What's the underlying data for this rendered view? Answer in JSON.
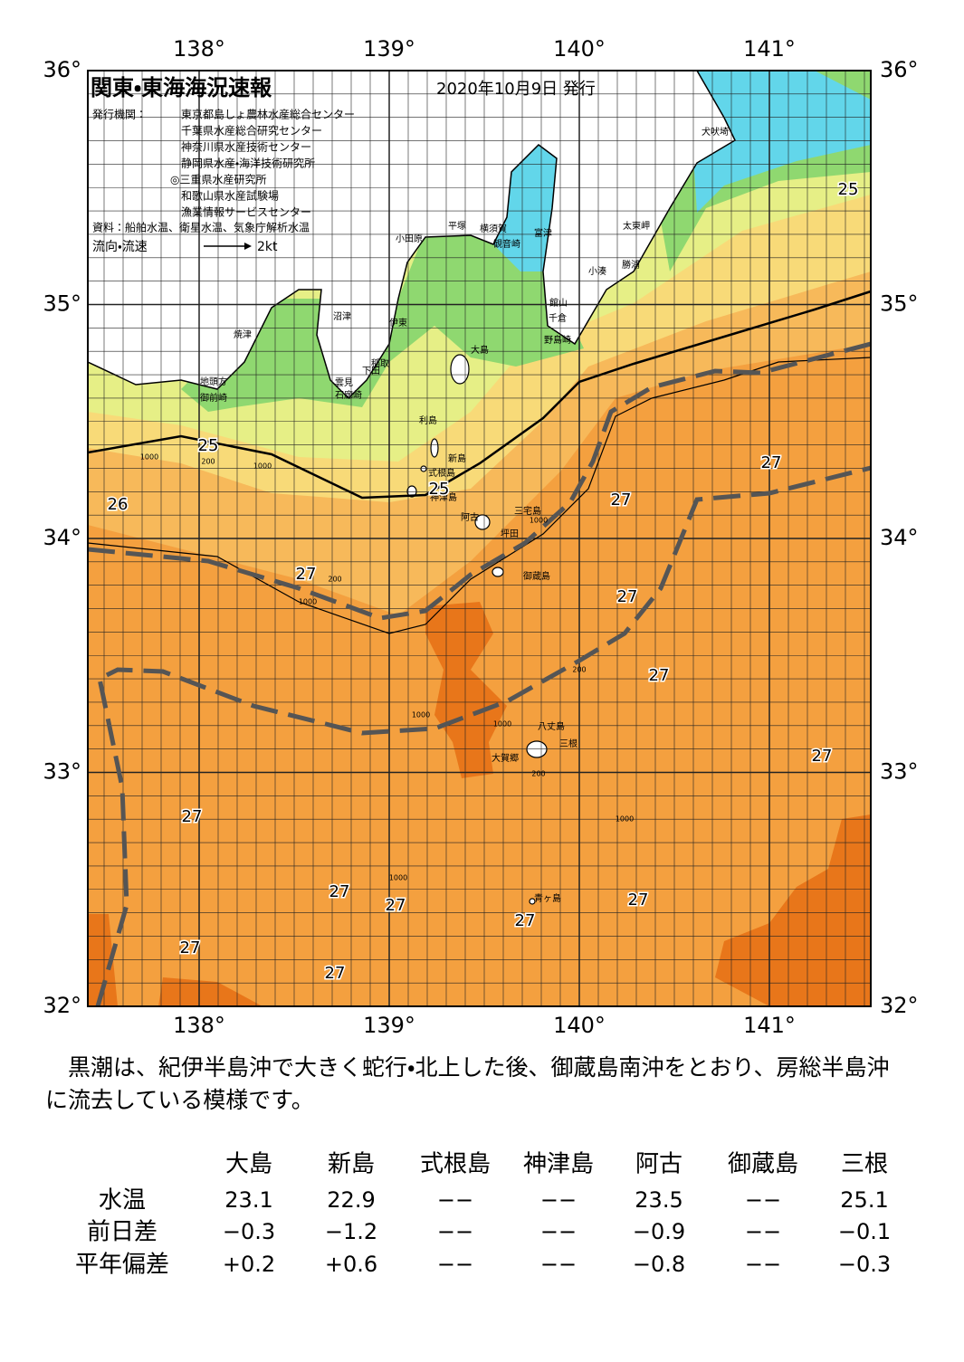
{
  "map": {
    "title": "関東・東海海況速報",
    "date": "2020年10月9日 発行",
    "publishers_label": "発行機関：",
    "publishers": [
      "東京都島しょ農林水産総合センター",
      "千葉県水産総合研究センター",
      "神奈川県水産技術センター",
      "静岡県水産・海洋技術研究所",
      "◎三重県水産研究所",
      "和歌山県水産試験場",
      "漁業情報サービスセンター"
    ],
    "source": "資料：船舶水温、衛星水温、気象庁解析水温",
    "current_label": "流向・流速",
    "current_scale": "2kt",
    "lon_labels": [
      "138°",
      "139°",
      "140°",
      "141°"
    ],
    "lat_labels": [
      "36°",
      "35°",
      "34°",
      "33°",
      "32°"
    ],
    "place_names": [
      "犬吠埼",
      "太東岬",
      "小湊",
      "勝浦",
      "富津",
      "観音崎",
      "横須賀",
      "平塚",
      "小田原",
      "館山",
      "千倉",
      "野島崎",
      "大島",
      "稲取",
      "下田",
      "雲見",
      "石廊崎",
      "伊東",
      "沼津",
      "焼津",
      "地頭方",
      "御前崎",
      "利島",
      "新島",
      "式根島",
      "神津島",
      "阿古",
      "三宅島",
      "坪田",
      "御蔵島",
      "八丈島",
      "三根",
      "大賀郷",
      "青ヶ島"
    ],
    "isotherm_labels": [
      "25",
      "25",
      "25",
      "26",
      "27",
      "27",
      "27",
      "27",
      "27",
      "27",
      "27",
      "27",
      "27",
      "27",
      "27",
      "27",
      "27"
    ],
    "depth_labels": [
      "1000",
      "200",
      "1000",
      "200",
      "1000",
      "1000",
      "200",
      "1000",
      "1000",
      "1000",
      "200",
      "1000"
    ]
  },
  "summary": "黒潮は、紀伊半島沖で大きく蛇行・北上した後、御蔵島南沖をとおり、房総半島沖に流去している模様です。",
  "table": {
    "columns": [
      "大島",
      "新島",
      "式根島",
      "神津島",
      "阿古",
      "御蔵島",
      "三根"
    ],
    "rows": [
      {
        "label": "水温",
        "values": [
          "23.1",
          "22.9",
          "−−",
          "−−",
          "23.5",
          "−−",
          "25.1"
        ]
      },
      {
        "label": "前日差",
        "values": [
          "−0.3",
          "−1.2",
          "−−",
          "−−",
          "−0.9",
          "−−",
          "−0.1"
        ]
      },
      {
        "label": "平年偏差",
        "values": [
          "+0.2",
          "+0.6",
          "−−",
          "−−",
          "−0.8",
          "−−",
          "−0.3"
        ]
      }
    ]
  }
}
